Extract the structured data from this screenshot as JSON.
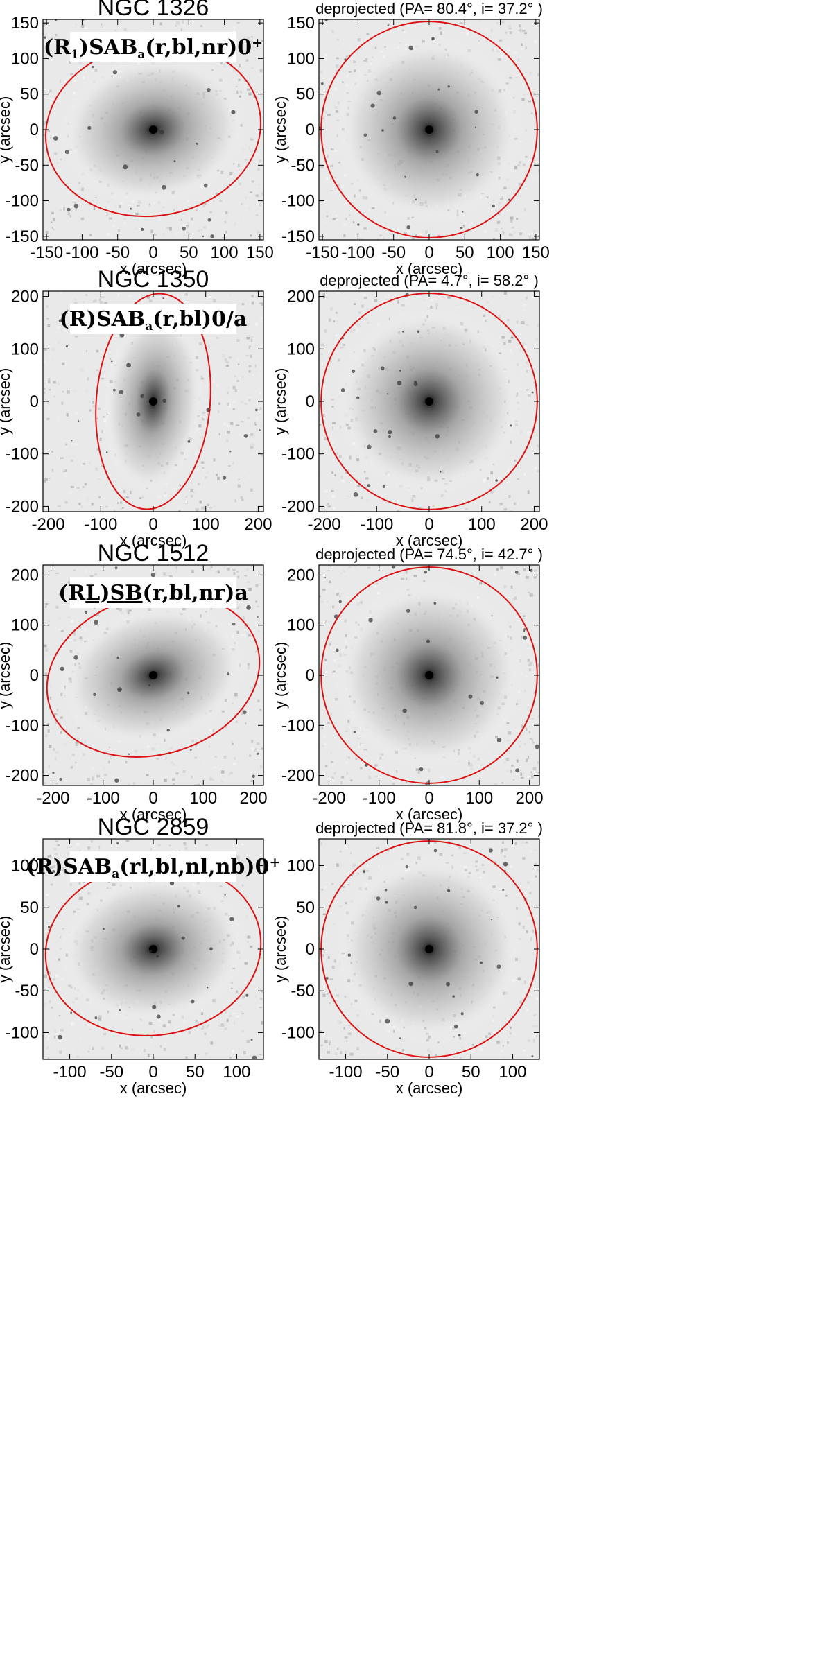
{
  "figure": {
    "axis_xlabel": "x (arcsec)",
    "axis_ylabel": "y (arcsec)",
    "ellipse_color": "#dd1111",
    "galaxies": [
      {
        "name": "NGC 1326",
        "classification": {
          "pre": "(R",
          "pre_sub": "1",
          "mid": ")SAB",
          "mid_sub": "a",
          "post": "(r,bl,nr)0",
          "post_sup": "+"
        },
        "deprojected_title": "deprojected  (PA= 80.4°, i= 37.2° )",
        "pa_deg": 80.4,
        "inclination_deg": 37.2,
        "range": 155,
        "ticks": [
          -150,
          -100,
          -50,
          0,
          50,
          100,
          150
        ]
      },
      {
        "name": "NGC 1350",
        "classification": {
          "pre": "(R",
          "pre_sub": "",
          "mid": ")SAB",
          "mid_sub": "a",
          "post": "(r,bl)0/a",
          "post_sup": ""
        },
        "deprojected_title": "deprojected  (PA= 4.7°, i= 58.2° )",
        "pa_deg": 4.7,
        "inclination_deg": 58.2,
        "range": 210,
        "ticks": [
          -200,
          -100,
          0,
          100,
          200
        ]
      },
      {
        "name": "NGC 1512",
        "classification": {
          "pre": "(R",
          "pre_sub": "",
          "mid": "L)SB",
          "mid_sub": "",
          "post": "(r,bl,nr)a",
          "post_sup": ""
        },
        "deprojected_title": "deprojected  (PA= 74.5°, i= 42.7° )",
        "pa_deg": 74.5,
        "inclination_deg": 42.7,
        "range": 220,
        "ticks": [
          -200,
          -100,
          0,
          100,
          200
        ]
      },
      {
        "name": "NGC 2859",
        "classification": {
          "pre": "(R",
          "pre_sub": "",
          "mid": ")SAB",
          "mid_sub": "a",
          "post": "(rl,bl,nl,nb)0",
          "post_sup": "+"
        },
        "deprojected_title": "deprojected  (PA= 81.8°, i= 37.2° )",
        "pa_deg": 81.8,
        "inclination_deg": 37.2,
        "range": 132,
        "ticks": [
          -100,
          -50,
          0,
          50,
          100
        ]
      }
    ]
  }
}
